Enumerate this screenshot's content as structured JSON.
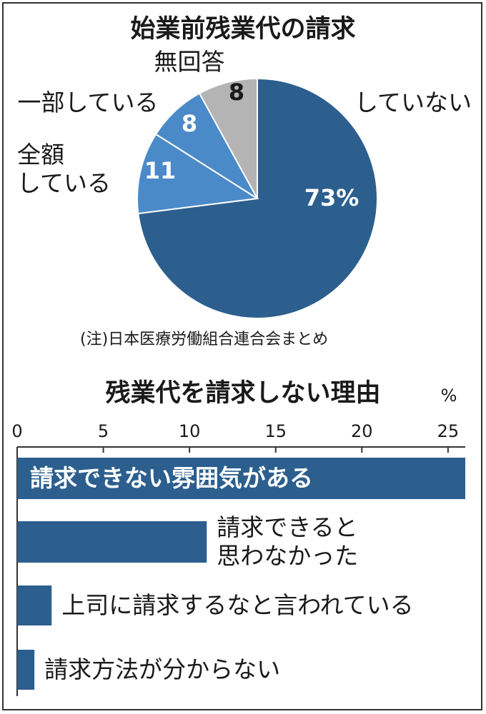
{
  "chart_data": [
    {
      "type": "pie",
      "title": "始業前残業代の請求",
      "slices": [
        {
          "label": "していない",
          "value": 73,
          "display": "73%",
          "color": "#2c5f8e"
        },
        {
          "label": "全額している",
          "label_lines": [
            "全額",
            "している"
          ],
          "value": 11,
          "display": "11",
          "color": "#4a8ac8"
        },
        {
          "label": "一部している",
          "value": 8,
          "display": "8",
          "color": "#4a8ac8"
        },
        {
          "label": "無回答",
          "value": 8,
          "display": "8",
          "color": "#b4b4b4"
        }
      ],
      "note": "(注)日本医療労働組合連合会まとめ"
    },
    {
      "type": "bar",
      "orientation": "horizontal",
      "title": "残業代を請求しない理由",
      "unit": "%",
      "xlim": [
        0,
        26
      ],
      "ticks": [
        0,
        5,
        10,
        15,
        20,
        25
      ],
      "categories": [
        "請求できない雰囲気がある",
        "請求できると思わなかった",
        "上司に請求するなと言われている",
        "請求方法が分からない"
      ],
      "category_lines": [
        [
          "請求できない雰囲気がある"
        ],
        [
          "請求できると",
          "思わなかった"
        ],
        [
          "上司に請求するなと言われている"
        ],
        [
          "請求方法が分からない"
        ]
      ],
      "values": [
        26,
        11,
        2,
        1
      ],
      "color": "#2c5f8e"
    }
  ]
}
